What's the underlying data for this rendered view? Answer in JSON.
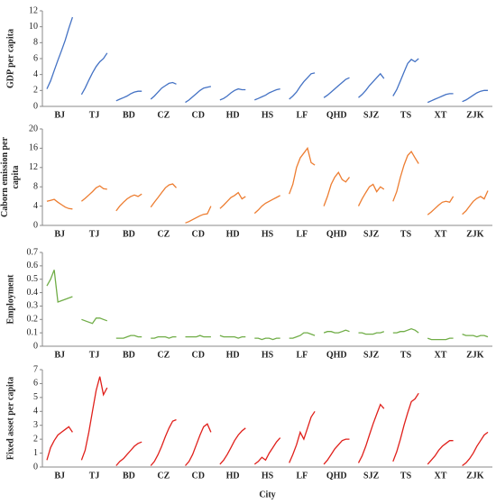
{
  "chart_data": [
    {
      "type": "line",
      "ylabel": "GDP per capita",
      "color": "#4472c4",
      "ylim": [
        0,
        12
      ],
      "yticks": [
        0,
        2,
        4,
        6,
        8,
        10,
        12
      ],
      "categories": [
        "BJ",
        "TJ",
        "BD",
        "CZ",
        "CD",
        "HD",
        "HS",
        "LF",
        "QHD",
        "SJZ",
        "TS",
        "XT",
        "ZJK"
      ],
      "values": [
        [
          2.2,
          3.2,
          4.5,
          5.8,
          7,
          8.3,
          9.8,
          11.2
        ],
        [
          1.5,
          2.3,
          3.3,
          4.2,
          5,
          5.6,
          6,
          6.7
        ],
        [
          0.7,
          0.9,
          1.1,
          1.3,
          1.6,
          1.8,
          1.9,
          1.9
        ],
        [
          0.9,
          1.3,
          1.8,
          2.3,
          2.6,
          2.9,
          3.0,
          2.8
        ],
        [
          0.5,
          0.8,
          1.2,
          1.6,
          2.0,
          2.3,
          2.4,
          2.5
        ],
        [
          0.8,
          1.0,
          1.3,
          1.7,
          2.0,
          2.2,
          2.1,
          2.1
        ],
        [
          0.8,
          1.0,
          1.2,
          1.4,
          1.7,
          1.9,
          2.1,
          2.2
        ],
        [
          0.9,
          1.3,
          1.8,
          2.5,
          3.1,
          3.6,
          4.1,
          4.2
        ],
        [
          1.1,
          1.4,
          1.8,
          2.2,
          2.6,
          3.0,
          3.4,
          3.6
        ],
        [
          1.1,
          1.5,
          2.0,
          2.6,
          3.1,
          3.6,
          4.1,
          3.5
        ],
        [
          1.3,
          2.1,
          3.2,
          4.3,
          5.4,
          5.9,
          5.6,
          6.0
        ],
        [
          0.5,
          0.7,
          0.9,
          1.1,
          1.3,
          1.5,
          1.6,
          1.6
        ],
        [
          0.6,
          0.8,
          1.1,
          1.4,
          1.7,
          1.9,
          2.0,
          2.0
        ]
      ]
    },
    {
      "type": "line",
      "ylabel": "Caborn emission per capita",
      "color": "#ed7d31",
      "ylim": [
        0,
        20
      ],
      "yticks": [
        0,
        4,
        8,
        12,
        16,
        20
      ],
      "categories": [
        "BJ",
        "TJ",
        "BD",
        "CZ",
        "CD",
        "HD",
        "HS",
        "LF",
        "QHD",
        "SJZ",
        "TS",
        "XT",
        "ZJK"
      ],
      "values": [
        [
          5,
          5.2,
          5.4,
          4.8,
          4.3,
          3.8,
          3.5,
          3.4
        ],
        [
          5,
          5.6,
          6.3,
          7,
          7.8,
          8.2,
          7.6,
          7.5
        ],
        [
          3,
          4,
          4.8,
          5.5,
          6,
          6.3,
          6,
          6.5
        ],
        [
          3.8,
          4.8,
          5.8,
          6.8,
          7.8,
          8.4,
          8.6,
          7.8
        ],
        [
          0.5,
          0.8,
          1.2,
          1.6,
          2.0,
          2.3,
          2.4,
          4
        ],
        [
          3.5,
          4.2,
          5.0,
          5.8,
          6.2,
          6.8,
          5.5,
          6
        ],
        [
          2.5,
          3.2,
          4.0,
          4.6,
          5.0,
          5.4,
          5.8,
          6.2
        ],
        [
          6.5,
          8.5,
          12,
          14,
          15,
          16,
          13,
          12.5
        ],
        [
          4,
          6,
          8.5,
          10,
          11,
          9.5,
          9.0,
          10
        ],
        [
          4,
          5.5,
          6.8,
          8,
          8.5,
          7,
          8,
          7.5
        ],
        [
          5,
          7,
          10,
          12.5,
          14.5,
          15.3,
          14,
          12.8
        ],
        [
          2.2,
          2.8,
          3.5,
          4.2,
          4.8,
          5.0,
          4.8,
          6
        ],
        [
          2.3,
          3,
          4,
          5,
          5.6,
          6,
          5.5,
          7.2
        ]
      ]
    },
    {
      "type": "line",
      "ylabel": "Employment",
      "color": "#70ad47",
      "ylim": [
        0,
        0.7
      ],
      "yticks": [
        0,
        0.1,
        0.2,
        0.3,
        0.4,
        0.5,
        0.6,
        0.7
      ],
      "categories": [
        "BJ",
        "TJ",
        "BD",
        "CZ",
        "CD",
        "HD",
        "HS",
        "LF",
        "QHD",
        "SJZ",
        "TS",
        "XT",
        "ZJK"
      ],
      "values": [
        [
          0.45,
          0.5,
          0.57,
          0.33,
          0.34,
          0.35,
          0.36,
          0.37
        ],
        [
          0.2,
          0.19,
          0.18,
          0.17,
          0.21,
          0.21,
          0.2,
          0.19
        ],
        [
          0.06,
          0.06,
          0.06,
          0.07,
          0.08,
          0.08,
          0.07,
          0.07
        ],
        [
          0.06,
          0.06,
          0.07,
          0.07,
          0.07,
          0.06,
          0.07,
          0.07
        ],
        [
          0.07,
          0.07,
          0.07,
          0.07,
          0.08,
          0.07,
          0.07,
          0.07
        ],
        [
          0.08,
          0.07,
          0.07,
          0.07,
          0.07,
          0.06,
          0.07,
          0.07
        ],
        [
          0.06,
          0.06,
          0.05,
          0.06,
          0.06,
          0.05,
          0.06,
          0.06
        ],
        [
          0.06,
          0.06,
          0.07,
          0.08,
          0.1,
          0.1,
          0.09,
          0.08
        ],
        [
          0.1,
          0.11,
          0.11,
          0.1,
          0.1,
          0.11,
          0.12,
          0.11
        ],
        [
          0.1,
          0.1,
          0.09,
          0.09,
          0.09,
          0.1,
          0.1,
          0.11
        ],
        [
          0.1,
          0.1,
          0.11,
          0.11,
          0.12,
          0.13,
          0.12,
          0.1
        ],
        [
          0.06,
          0.05,
          0.05,
          0.05,
          0.05,
          0.05,
          0.06,
          0.06
        ],
        [
          0.09,
          0.08,
          0.08,
          0.08,
          0.07,
          0.08,
          0.08,
          0.07
        ]
      ]
    },
    {
      "type": "line",
      "ylabel": "Fixed asset per capita",
      "xlabel": "City",
      "color": "#e0201b",
      "ylim": [
        0,
        7
      ],
      "yticks": [
        0,
        1,
        2,
        3,
        4,
        5,
        6,
        7
      ],
      "categories": [
        "BJ",
        "TJ",
        "BD",
        "CZ",
        "CD",
        "HD",
        "HS",
        "LF",
        "QHD",
        "SJZ",
        "TS",
        "XT",
        "ZJK"
      ],
      "values": [
        [
          0.5,
          1.4,
          1.9,
          2.3,
          2.5,
          2.7,
          2.9,
          2.5
        ],
        [
          0.5,
          1.2,
          2.5,
          4,
          5.5,
          6.5,
          5.2,
          5.7
        ],
        [
          0.1,
          0.4,
          0.6,
          0.9,
          1.2,
          1.5,
          1.7,
          1.8
        ],
        [
          0.1,
          0.4,
          0.9,
          1.5,
          2.2,
          2.8,
          3.3,
          3.4
        ],
        [
          0.1,
          0.4,
          0.9,
          1.6,
          2.3,
          2.9,
          3.1,
          2.5
        ],
        [
          0.2,
          0.5,
          0.9,
          1.4,
          1.9,
          2.3,
          2.6,
          2.8
        ],
        [
          0.2,
          0.4,
          0.7,
          0.5,
          1.0,
          1.4,
          1.8,
          2.1
        ],
        [
          0.3,
          0.9,
          1.6,
          2.5,
          2.0,
          2.8,
          3.6,
          4.0
        ],
        [
          0.2,
          0.5,
          0.9,
          1.3,
          1.6,
          1.9,
          2.0,
          2.0
        ],
        [
          0.3,
          0.8,
          1.5,
          2.3,
          3.1,
          3.8,
          4.5,
          4.2
        ],
        [
          0.4,
          1.1,
          2.0,
          3.0,
          3.9,
          4.7,
          4.9,
          5.3
        ],
        [
          0.2,
          0.5,
          0.8,
          1.2,
          1.5,
          1.7,
          1.9,
          1.9
        ],
        [
          0.1,
          0.3,
          0.6,
          1.0,
          1.5,
          1.9,
          2.3,
          2.5
        ]
      ]
    }
  ]
}
